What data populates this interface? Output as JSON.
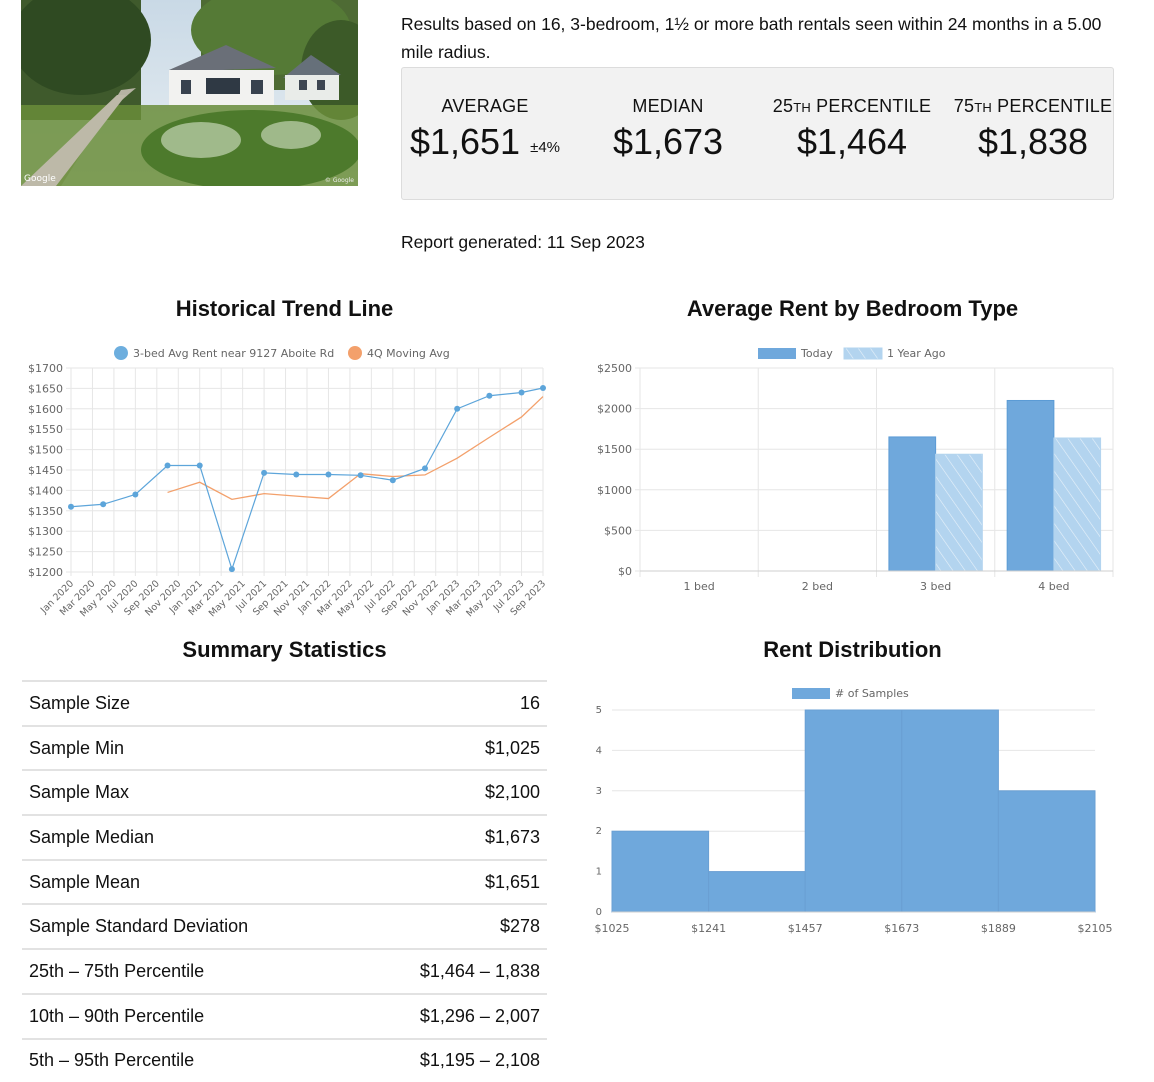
{
  "photo": {
    "credit_left": "Google",
    "credit_right": "© Google"
  },
  "intro": "Results based on 16, 3-bedroom, 1½ or more bath rentals seen within 24 months in a 5.00 mile radius.",
  "stats": [
    {
      "label_pre": "AVERAGE",
      "label_sc": "",
      "label_post": "",
      "value": "$1,651",
      "pm": "±4%"
    },
    {
      "label_pre": "MEDIAN",
      "label_sc": "",
      "label_post": "",
      "value": "$1,673",
      "pm": ""
    },
    {
      "label_pre": "25",
      "label_sc": "TH",
      "label_post": " PERCENTILE",
      "value": "$1,464",
      "pm": ""
    },
    {
      "label_pre": "75",
      "label_sc": "TH",
      "label_post": " PERCENTILE",
      "value": "$1,838",
      "pm": ""
    }
  ],
  "report_date": "Report generated: 11 Sep 2023",
  "titles": {
    "trend": "Historical Trend Line",
    "bedroom": "Average Rent by Bedroom Type",
    "summary": "Summary Statistics",
    "distribution": "Rent Distribution"
  },
  "summary_rows": [
    {
      "label": "Sample Size",
      "value": "16"
    },
    {
      "label": "Sample Min",
      "value": "$1,025"
    },
    {
      "label": "Sample Max",
      "value": "$2,100"
    },
    {
      "label": "Sample Median",
      "value": "$1,673"
    },
    {
      "label": "Sample Mean",
      "value": "$1,651"
    },
    {
      "label": "Sample Standard Deviation",
      "value": "$278"
    },
    {
      "label": "25th – 75th Percentile",
      "value": "$1,464 – 1,838"
    },
    {
      "label": "10th – 90th Percentile",
      "value": "$1,296 – 2,007"
    },
    {
      "label": "5th – 95th Percentile",
      "value": "$1,195 – 2,108"
    }
  ],
  "colors": {
    "blue": "#5da5da",
    "bar_blue": "#6fa8dc",
    "bar_light": "#b3d4ef",
    "orange": "#f3a06b",
    "grid": "#e6e6e6"
  },
  "chart_data": [
    {
      "type": "line",
      "title": "Historical Trend Line",
      "x": [
        "Jan 2020",
        "Mar 2020",
        "May 2020",
        "Jul 2020",
        "Sep 2020",
        "Nov 2020",
        "Jan 2021",
        "Mar 2021",
        "May 2021",
        "Jul 2021",
        "Sep 2021",
        "Nov 2021",
        "Jan 2022",
        "Mar 2022",
        "May 2022",
        "Jul 2022",
        "Sep 2022",
        "Nov 2022",
        "Jan 2023",
        "Mar 2023",
        "May 2023",
        "Jul 2023",
        "Sep 2023"
      ],
      "y_ticks": [
        "$1200",
        "$1250",
        "$1300",
        "$1350",
        "$1400",
        "$1450",
        "$1500",
        "$1550",
        "$1600",
        "$1650",
        "$1700"
      ],
      "ylim": [
        1200,
        1700
      ],
      "series": [
        {
          "name": "3-bed Avg Rent near 9127 Aboite Rd",
          "color": "#5da5da",
          "points": [
            [
              "Jan 2020",
              1360
            ],
            [
              "Apr 2020",
              1366
            ],
            [
              "Jul 2020",
              1390
            ],
            [
              "Oct 2020",
              1461
            ],
            [
              "Jan 2021",
              1461
            ],
            [
              "Apr 2021",
              1207
            ],
            [
              "Jul 2021",
              1443
            ],
            [
              "Oct 2021",
              1439
            ],
            [
              "Jan 2022",
              1439
            ],
            [
              "Apr 2022",
              1437
            ],
            [
              "Jul 2022",
              1425
            ],
            [
              "Oct 2022",
              1454
            ],
            [
              "Jan 2023",
              1600
            ],
            [
              "Apr 2023",
              1632
            ],
            [
              "Jul 2023",
              1640
            ],
            [
              "Sep 2023",
              1651
            ]
          ]
        },
        {
          "name": "4Q Moving Avg",
          "color": "#f3a06b",
          "points": [
            [
              "Oct 2020",
              1395
            ],
            [
              "Jan 2021",
              1420
            ],
            [
              "Apr 2021",
              1378
            ],
            [
              "Jul 2021",
              1392
            ],
            [
              "Oct 2021",
              1386
            ],
            [
              "Jan 2022",
              1380
            ],
            [
              "Apr 2022",
              1441
            ],
            [
              "Jul 2022",
              1434
            ],
            [
              "Oct 2022",
              1438
            ],
            [
              "Jan 2023",
              1479
            ],
            [
              "Apr 2023",
              1530
            ],
            [
              "Jul 2023",
              1580
            ],
            [
              "Sep 2023",
              1630
            ]
          ]
        }
      ],
      "grid": true,
      "legend": "top"
    },
    {
      "type": "bar",
      "title": "Average Rent by Bedroom Type",
      "categories": [
        "1 bed",
        "2 bed",
        "3 bed",
        "4 bed"
      ],
      "y_ticks": [
        "$0",
        "$500",
        "$1000",
        "$1500",
        "$2000",
        "$2500"
      ],
      "ylim": [
        0,
        2500
      ],
      "series": [
        {
          "name": "Today",
          "values": [
            0,
            0,
            1651,
            2100
          ]
        },
        {
          "name": "1 Year Ago",
          "values": [
            0,
            0,
            1438,
            1638
          ]
        }
      ],
      "grid": true,
      "legend": "top"
    },
    {
      "type": "bar",
      "title": "Rent Distribution",
      "bin_edges": [
        "$1025",
        "$1241",
        "$1457",
        "$1673",
        "$1889",
        "$2105"
      ],
      "y_ticks": [
        "0",
        "1",
        "2",
        "3",
        "4",
        "5"
      ],
      "ylim": [
        0,
        5
      ],
      "series": [
        {
          "name": "# of Samples",
          "values": [
            2,
            1,
            5,
            5,
            3
          ]
        }
      ],
      "grid": true,
      "legend": "top"
    }
  ]
}
